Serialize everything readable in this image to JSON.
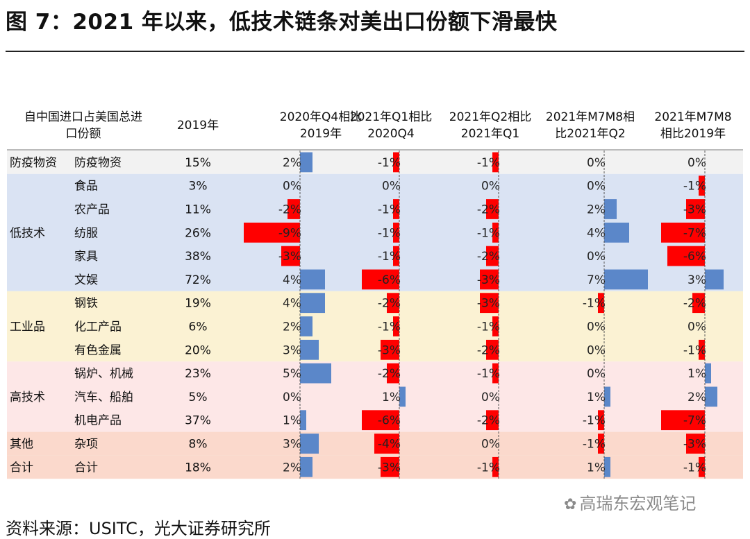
{
  "title": "图 7：2021 年以来，低技术链条对美出口份额下滑最快",
  "source": "资料来源：USITC，光大证券研究所",
  "watermark": "高瑞东宏观笔记",
  "colors": {
    "positive": "#5b87c9",
    "negative": "#ff0000",
    "band_epidemic": "#f2f2f2",
    "band_low": "#dae3f3",
    "band_industrial": "#fbf2d3",
    "band_high": "#fde7e7",
    "band_other": "#fbd9cc",
    "axis": "#555555"
  },
  "chart_data": {
    "type": "table",
    "header": {
      "category": [
        "自中国进口占美国总进",
        "口份额"
      ],
      "base_year": "2019年",
      "metrics": [
        [
          "2020年Q4相比",
          "2019年"
        ],
        [
          "2021年Q1相比",
          "2020Q4"
        ],
        [
          "2021年Q2相比",
          "2021年Q1"
        ],
        [
          "2021年M7M8相",
          "比2021年Q2"
        ],
        [
          "2021年M7M8",
          "相比2019年"
        ]
      ]
    },
    "groups": [
      {
        "name": "防疫物资",
        "band": "band_epidemic",
        "rows": [
          {
            "item": "防疫物资",
            "share": "15%",
            "values": [
              2,
              -1,
              -1,
              0,
              0
            ]
          }
        ]
      },
      {
        "name": "低技术",
        "band": "band_low",
        "rows": [
          {
            "item": "食品",
            "share": "3%",
            "values": [
              0,
              0,
              0,
              0,
              -1
            ]
          },
          {
            "item": "农产品",
            "share": "11%",
            "values": [
              -2,
              -1,
              -2,
              2,
              -3
            ]
          },
          {
            "item": "纺服",
            "share": "26%",
            "values": [
              -9,
              -1,
              -1,
              4,
              -7
            ]
          },
          {
            "item": "家具",
            "share": "38%",
            "values": [
              -3,
              -1,
              -2,
              0,
              -6
            ]
          },
          {
            "item": "文娱",
            "share": "72%",
            "values": [
              4,
              -6,
              -3,
              7,
              3
            ]
          }
        ]
      },
      {
        "name": "工业品",
        "band": "band_industrial",
        "rows": [
          {
            "item": "钢铁",
            "share": "19%",
            "values": [
              4,
              -2,
              -3,
              -1,
              -2
            ]
          },
          {
            "item": "化工产品",
            "share": "6%",
            "values": [
              2,
              -1,
              -1,
              0,
              0
            ]
          },
          {
            "item": "有色金属",
            "share": "20%",
            "values": [
              3,
              -3,
              -2,
              0,
              -1
            ]
          }
        ]
      },
      {
        "name": "高技术",
        "band": "band_high",
        "rows": [
          {
            "item": "锅炉、机械",
            "share": "23%",
            "values": [
              5,
              -2,
              -1,
              0,
              1
            ]
          },
          {
            "item": "汽车、船舶",
            "share": "5%",
            "values": [
              0,
              1,
              0,
              1,
              2
            ]
          },
          {
            "item": "机电产品",
            "share": "37%",
            "values": [
              1,
              -6,
              -2,
              -1,
              -7
            ]
          }
        ]
      },
      {
        "name": "其他",
        "band": "band_other",
        "rows": [
          {
            "item": "杂项",
            "share": "8%",
            "values": [
              3,
              -4,
              0,
              -1,
              -3
            ]
          }
        ]
      },
      {
        "name": "合计",
        "band": "band_other",
        "rows": [
          {
            "item": "合计",
            "share": "18%",
            "values": [
              2,
              -3,
              -1,
              1,
              -1
            ]
          }
        ]
      }
    ],
    "unit": "%"
  }
}
